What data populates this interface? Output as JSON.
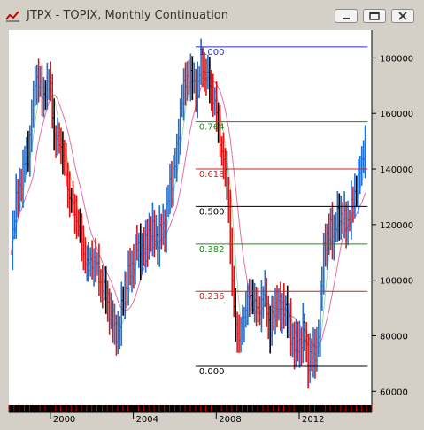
{
  "window": {
    "title": "JTPX - TOPIX, Monthly Continuation",
    "buttons": [
      "minimize",
      "restore",
      "close"
    ]
  },
  "colors": {
    "background": "#d4d0c8",
    "plot_background": "#ffffff",
    "up_bar": "#1f6fd6",
    "down_bar": "#d81818",
    "neutral_bar": "#000000",
    "ma_fast": "#a9d9a0",
    "ma_slow": "#e46fa8",
    "fib_100": "#2a2ad0",
    "fib_764": "#1d8a1d",
    "fib_618": "#d42020",
    "fib_500": "#000000",
    "fib_382": "#1d8a1d",
    "fib_236": "#d42020",
    "fib_000": "#000000"
  },
  "chart_data": {
    "type": "line",
    "title": "JTPX - TOPIX, Monthly Continuation",
    "xlabel": "",
    "ylabel": "",
    "ylim": [
      55000,
      190000
    ],
    "xlim": [
      1998.0,
      2015.5
    ],
    "y_ticks": [
      60000,
      80000,
      100000,
      120000,
      140000,
      160000,
      180000
    ],
    "y_tick_labels": [
      "60000",
      "80000",
      "100000",
      "120000",
      "140000",
      "160000",
      "180000"
    ],
    "x_ticks": [
      2000,
      2004,
      2008,
      2012
    ],
    "x_tick_labels": [
      "2000",
      "2004",
      "2008",
      "2012"
    ],
    "grid": false,
    "series": [
      {
        "x": [
          1998.1,
          1998.3,
          1999.0,
          1999.3,
          1999.6,
          2000.0,
          2000.2,
          2000.5,
          2000.7,
          2001.0,
          2001.3,
          2001.6,
          2001.8,
          2002.1,
          2002.4,
          2002.7,
          2003.0,
          2003.3,
          2003.5,
          2003.8,
          2004.2,
          2004.5,
          2004.8,
          2005.2,
          2005.5,
          2005.8,
          2006.1,
          2006.3,
          2006.7,
          2007.0,
          2007.3,
          2007.6,
          2007.9,
          2008.1,
          2008.4,
          2008.6,
          2008.8,
          2009.1,
          2009.4,
          2009.7,
          2010.0,
          2010.3,
          2010.6,
          2010.9,
          2011.1,
          2011.3,
          2011.6,
          2011.9,
          2012.2,
          2012.4,
          2012.7,
          2012.9,
          2013.1,
          2013.2,
          2013.4,
          2013.5,
          2013.7,
          2013.9,
          2014.1,
          2014.3,
          2014.6,
          2014.8,
          2015.0,
          2015.2
        ],
        "values": [
          112000,
          126000,
          150000,
          175000,
          166000,
          172000,
          150000,
          150000,
          140000,
          128000,
          122000,
          110000,
          105000,
          108000,
          100000,
          94000,
          84000,
          80000,
          94000,
          102000,
          112000,
          110000,
          118000,
          115000,
          120000,
          135000,
          145000,
          165000,
          175000,
          168000,
          178000,
          172000,
          165000,
          155000,
          140000,
          128000,
          92000,
          78000,
          90000,
          95000,
          88000,
          96000,
          82000,
          93000,
          88000,
          92000,
          80000,
          75000,
          82000,
          72000,
          73000,
          78000,
          100000,
          115000,
          113000,
          120000,
          116000,
          125000,
          122000,
          120000,
          128000,
          135000,
          140000,
          153000
        ]
      }
    ],
    "fib_levels": [
      {
        "label": "1.000",
        "value": 184000,
        "color": "#2a2ad0"
      },
      {
        "label": "0.764",
        "value": 157000,
        "color": "#1d8a1d"
      },
      {
        "label": "0.618",
        "value": 140000,
        "color": "#d42020"
      },
      {
        "label": "0.500",
        "value": 126500,
        "color": "#000000"
      },
      {
        "label": "0.382",
        "value": 113000,
        "color": "#1d8a1d"
      },
      {
        "label": "0.236",
        "value": 96000,
        "color": "#d42020"
      },
      {
        "label": "0.000",
        "value": 69000,
        "color": "#000000"
      }
    ]
  }
}
